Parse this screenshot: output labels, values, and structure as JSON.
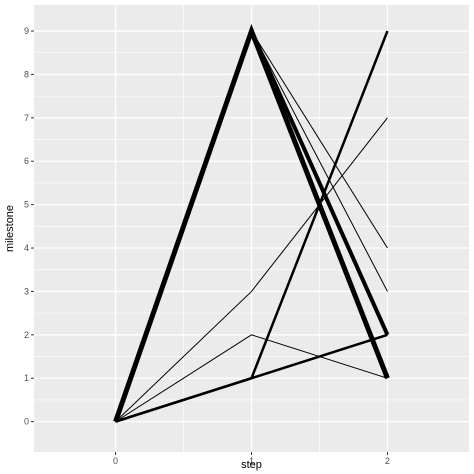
{
  "chart_data": {
    "type": "line",
    "xlabel": "step",
    "ylabel": "milestone",
    "xlim": [
      -0.6,
      2.6
    ],
    "ylim": [
      -0.7,
      9.6
    ],
    "x_ticks": [
      0,
      1,
      2
    ],
    "y_ticks": [
      0,
      1,
      2,
      3,
      4,
      5,
      6,
      7,
      8,
      9
    ],
    "grid": true,
    "legend": "none",
    "colors": {
      "panel": "#ebebeb",
      "grid_major": "#ffffff",
      "line": "#000000"
    },
    "series": [
      {
        "x": [
          0,
          1,
          2
        ],
        "y": [
          0,
          9,
          1
        ],
        "width": 5
      },
      {
        "x": [
          0,
          1,
          2
        ],
        "y": [
          0,
          9,
          2
        ],
        "width": 4
      },
      {
        "x": [
          0,
          1,
          2
        ],
        "y": [
          0,
          1,
          2
        ],
        "width": 2.5
      },
      {
        "x": [
          0,
          1,
          2
        ],
        "y": [
          0,
          1,
          9
        ],
        "width": 2.5
      },
      {
        "x": [
          0,
          1,
          2
        ],
        "y": [
          0,
          3,
          7
        ],
        "width": 1
      },
      {
        "x": [
          0,
          1,
          2
        ],
        "y": [
          0,
          2,
          1
        ],
        "width": 1
      },
      {
        "x": [
          0,
          1,
          2
        ],
        "y": [
          0,
          9,
          4
        ],
        "width": 1
      },
      {
        "x": [
          0,
          1,
          2
        ],
        "y": [
          0,
          9,
          3
        ],
        "width": 1
      }
    ]
  }
}
